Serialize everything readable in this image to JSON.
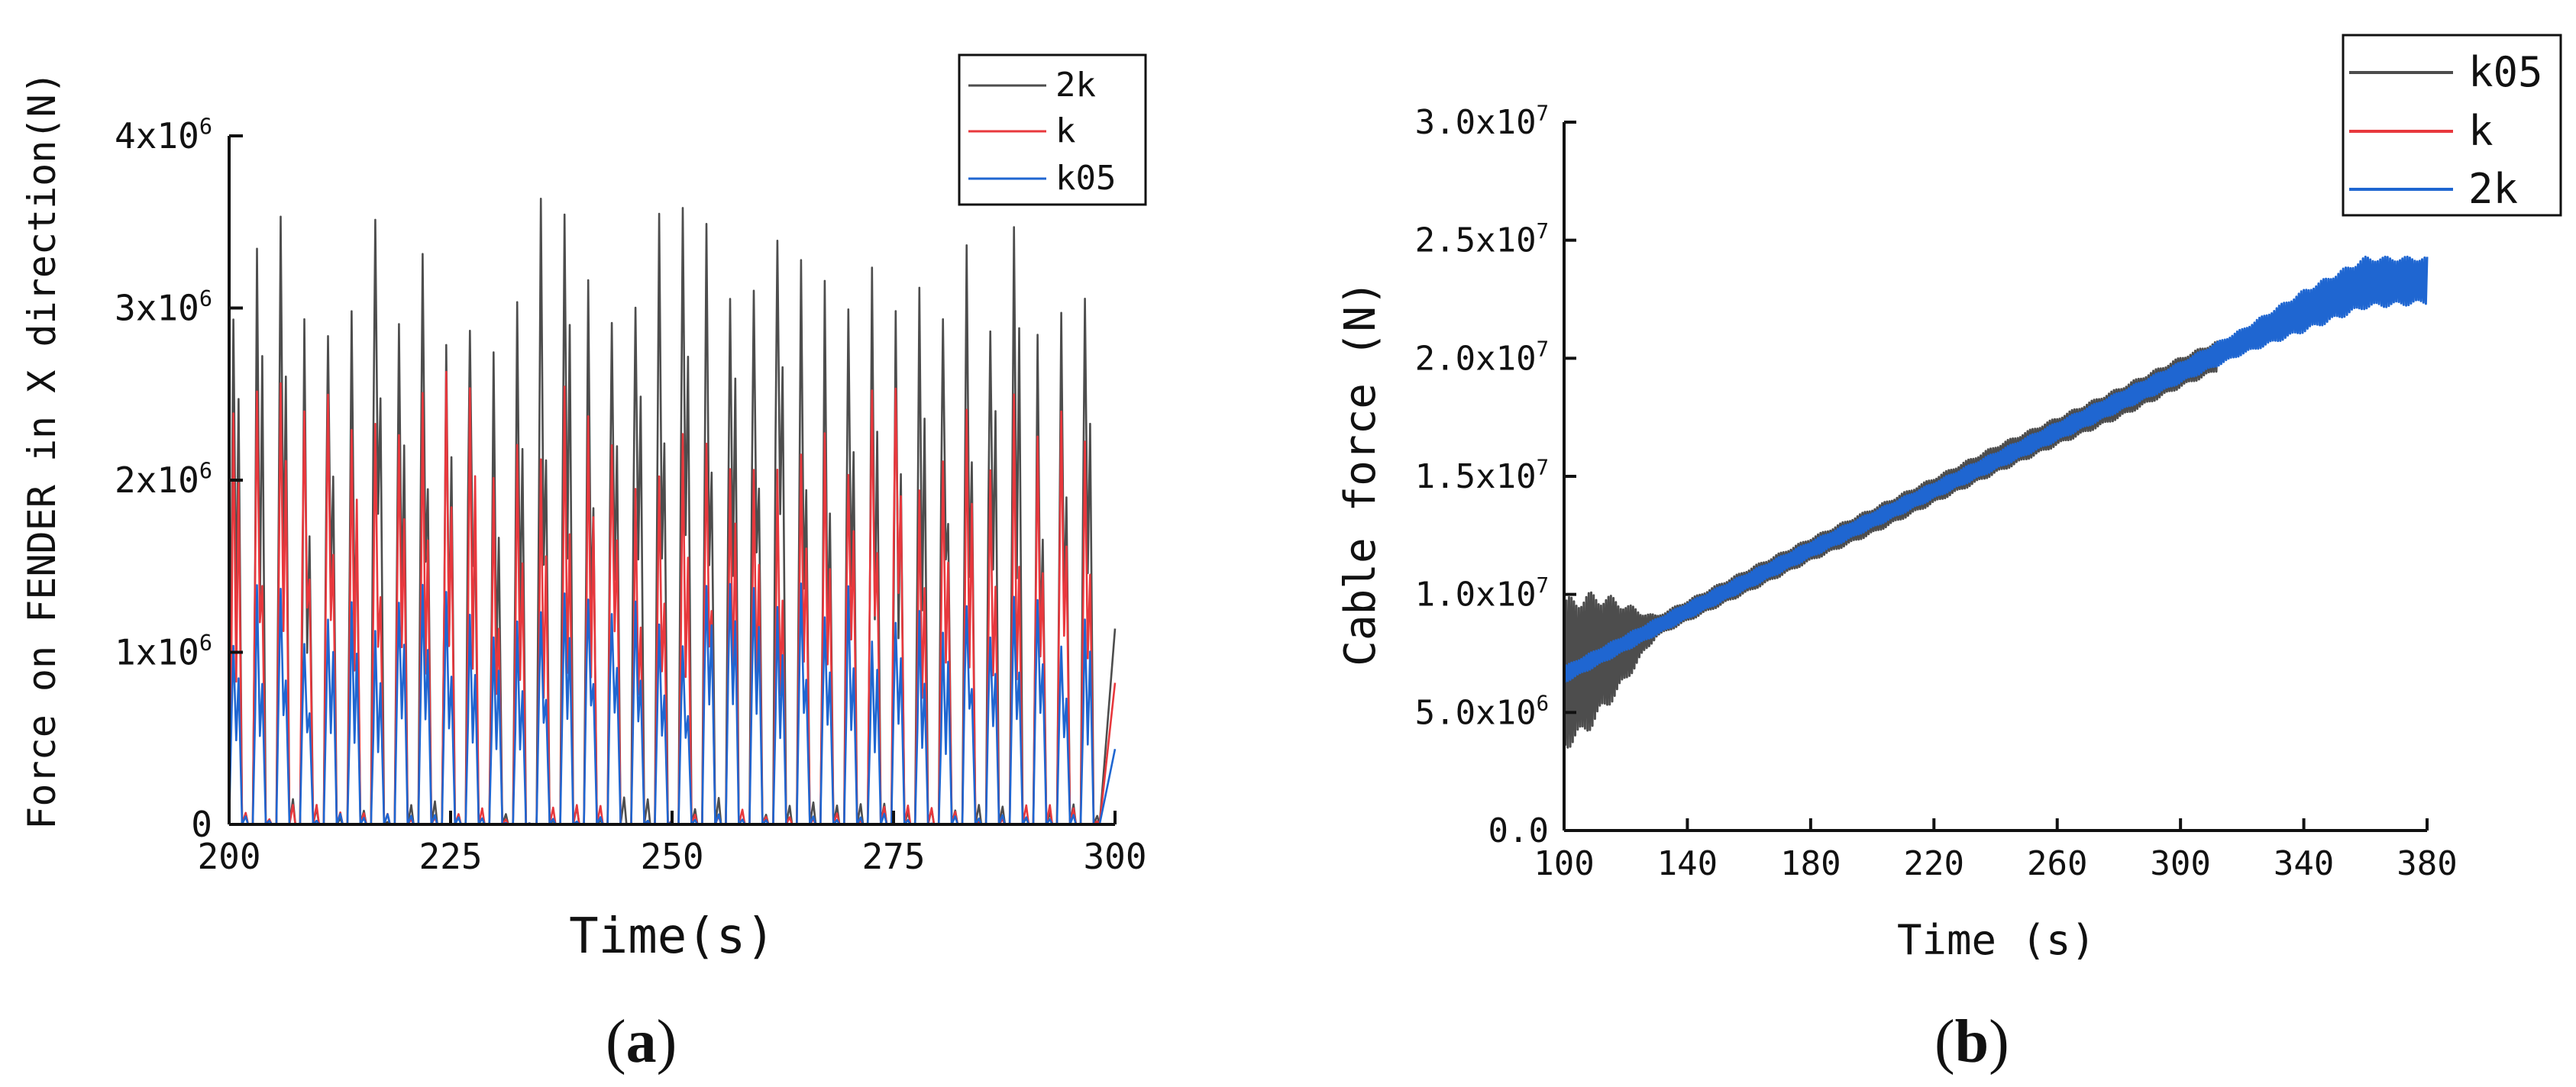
{
  "figure": {
    "panel_labels": [
      {
        "open": "(",
        "letter": "a",
        "close": ")"
      },
      {
        "open": "(",
        "letter": "b",
        "close": ")"
      }
    ]
  },
  "chart_data": [
    {
      "type": "line",
      "xlabel": "Time(s)",
      "ylabel": "Force on FENDER in X direction(N)",
      "xlim": [
        200,
        300
      ],
      "ylim": [
        0,
        4000000
      ],
      "xticks": [
        200,
        225,
        250,
        275,
        300
      ],
      "yticks": [
        {
          "value": 0,
          "label": "0"
        },
        {
          "value": 1000000,
          "mant": "1x10",
          "exp": "6"
        },
        {
          "value": 2000000,
          "mant": "2x10",
          "exp": "6"
        },
        {
          "value": 3000000,
          "mant": "3x10",
          "exp": "6"
        },
        {
          "value": 4000000,
          "mant": "4x10",
          "exp": "6"
        }
      ],
      "legend_position": "top-right",
      "series": [
        {
          "name": "2k",
          "color": "#4d4d4d",
          "period_s": 2.67,
          "min": 0,
          "peak_mean": 3250000,
          "peak_max": 3750000
        },
        {
          "name": "k",
          "color": "#e8383d",
          "period_s": 2.67,
          "min": 0,
          "peak_mean": 2350000,
          "peak_max": 2650000
        },
        {
          "name": "k05",
          "color": "#1f66d1",
          "period_s": 2.67,
          "min": 0,
          "peak_mean": 1250000,
          "peak_max": 1450000
        }
      ]
    },
    {
      "type": "line",
      "xlabel": "Time (s)",
      "ylabel": "Cable force (N)",
      "xlim": [
        100,
        380
      ],
      "ylim": [
        0,
        30000000
      ],
      "xticks": [
        100,
        140,
        180,
        220,
        260,
        300,
        340,
        380
      ],
      "yticks": [
        {
          "value": 0,
          "label": "0.0"
        },
        {
          "value": 5000000,
          "mant": "5.0x10",
          "exp": "6"
        },
        {
          "value": 10000000,
          "mant": "1.0x10",
          "exp": "7"
        },
        {
          "value": 15000000,
          "mant": "1.5x10",
          "exp": "7"
        },
        {
          "value": 20000000,
          "mant": "2.0x10",
          "exp": "7"
        },
        {
          "value": 25000000,
          "mant": "2.5x10",
          "exp": "7"
        },
        {
          "value": 30000000,
          "mant": "3.0x10",
          "exp": "7"
        }
      ],
      "legend_position": "top-right",
      "series": [
        {
          "name": "k05",
          "color": "#4d4d4d",
          "x": [
            100,
            105,
            110,
            115,
            120,
            125,
            130,
            140,
            160,
            180,
            200,
            220,
            240,
            260,
            280,
            300,
            312
          ],
          "mean": [
            6600000,
            6900000,
            7300000,
            7650000,
            7950000,
            8300000,
            8650000,
            9300000,
            10600000,
            11900000,
            13100000,
            14400000,
            15700000,
            16900000,
            18100000,
            19400000,
            20100000
          ],
          "amplitude": [
            3200000,
            3150000,
            2800000,
            2300000,
            1700000,
            1000000,
            450000,
            450000,
            500000,
            500000,
            550000,
            550000,
            600000,
            600000,
            650000,
            650000,
            650000
          ]
        },
        {
          "name": "k",
          "color": "#e8383d",
          "x": [
            100,
            140,
            180,
            220,
            260,
            300
          ],
          "mean": [
            6600000,
            9300000,
            11900000,
            14400000,
            16900000,
            19400000
          ],
          "amplitude": [
            250000,
            250000,
            250000,
            250000,
            250000,
            250000
          ]
        },
        {
          "name": "2k",
          "color": "#1f66d1",
          "x": [
            100,
            140,
            180,
            220,
            260,
            300,
            320,
            340,
            360,
            380
          ],
          "mean": [
            6600000,
            9300000,
            11900000,
            14400000,
            16900000,
            19400000,
            20700000,
            22000000,
            23200000,
            23300000
          ],
          "amplitude": [
            350000,
            350000,
            350000,
            350000,
            400000,
            450000,
            550000,
            900000,
            1100000,
            1000000
          ]
        }
      ]
    }
  ]
}
